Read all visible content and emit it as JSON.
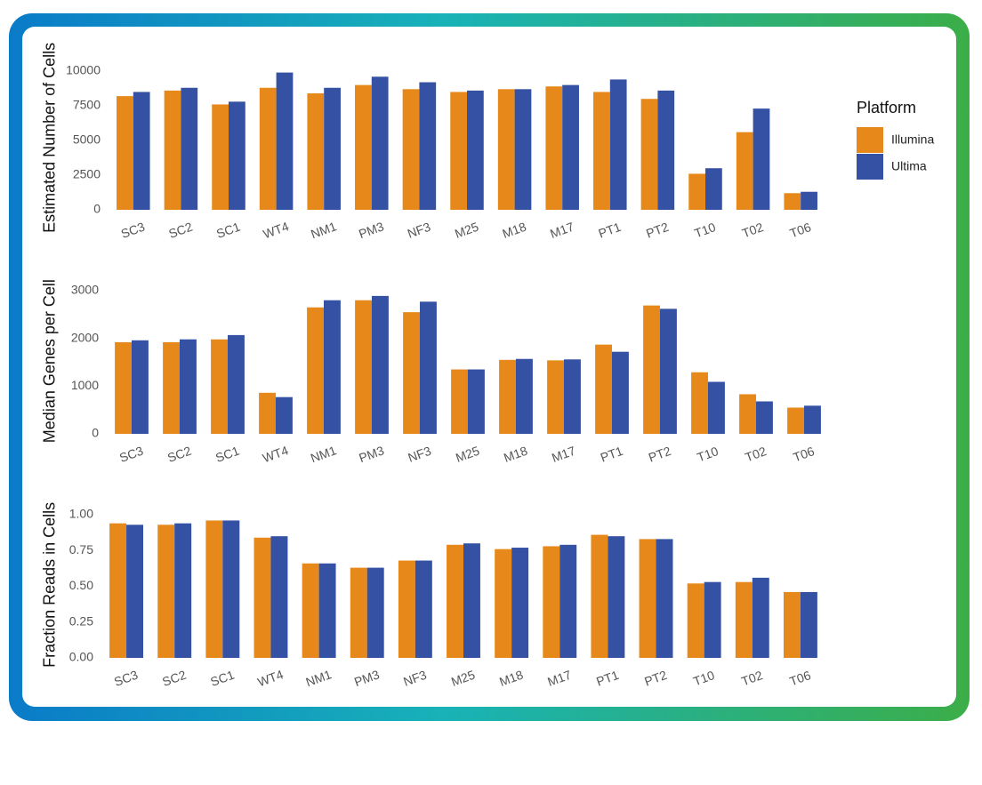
{
  "chart_data": [
    {
      "type": "bar",
      "y_label": "Estimated Number of Cells",
      "legend": {
        "title": "Platform",
        "position": "right"
      },
      "categories": [
        "SC3",
        "SC2",
        "SC1",
        "WT4",
        "NM1",
        "PM3",
        "NF3",
        "M25",
        "M18",
        "M17",
        "PT1",
        "PT2",
        "T10",
        "T02",
        "T06"
      ],
      "series": [
        {
          "name": "Illumina",
          "color": "#e6891a",
          "values": [
            8200,
            8600,
            7600,
            8800,
            8400,
            9000,
            8700,
            8500,
            8700,
            8900,
            8500,
            8000,
            2600,
            5600,
            1200
          ]
        },
        {
          "name": "Ultima",
          "color": "#3551a4",
          "values": [
            8500,
            8800,
            7800,
            9900,
            8800,
            9600,
            9200,
            8600,
            8700,
            9000,
            9400,
            8600,
            3000,
            7300,
            1300
          ]
        }
      ],
      "ylim": [
        0,
        10400
      ],
      "yticks": [
        0,
        2500,
        5000,
        7500,
        10000
      ]
    },
    {
      "type": "bar",
      "y_label": "Median Genes per Cell",
      "categories": [
        "SC3",
        "SC2",
        "SC1",
        "WT4",
        "NM1",
        "PM3",
        "NF3",
        "M25",
        "M18",
        "M17",
        "PT1",
        "PT2",
        "T10",
        "T02",
        "T06"
      ],
      "series": [
        {
          "color": "#e6891a",
          "values": [
            1920,
            1920,
            1980,
            860,
            2650,
            2800,
            2550,
            1350,
            1550,
            1540,
            1870,
            2690,
            1290,
            830,
            550
          ]
        },
        {
          "color": "#3551a4",
          "values": [
            1960,
            1980,
            2070,
            770,
            2800,
            2890,
            2770,
            1350,
            1570,
            1560,
            1720,
            2620,
            1090,
            680,
            590
          ]
        }
      ],
      "ylim": [
        0,
        3050
      ],
      "yticks": [
        0,
        1000,
        2000,
        3000
      ]
    },
    {
      "type": "bar",
      "y_label": "Fraction Reads in Cells",
      "categories": [
        "SC3",
        "SC2",
        "SC1",
        "WT4",
        "NM1",
        "PM3",
        "NF3",
        "M25",
        "M18",
        "M17",
        "PT1",
        "PT2",
        "T10",
        "T02",
        "T06"
      ],
      "series": [
        {
          "color": "#e6891a",
          "values": [
            0.94,
            0.93,
            0.96,
            0.84,
            0.66,
            0.63,
            0.68,
            0.79,
            0.76,
            0.78,
            0.86,
            0.83,
            0.52,
            0.53,
            0.46
          ]
        },
        {
          "color": "#3551a4",
          "values": [
            0.93,
            0.94,
            0.96,
            0.85,
            0.66,
            0.63,
            0.68,
            0.8,
            0.77,
            0.79,
            0.85,
            0.83,
            0.53,
            0.56,
            0.46
          ]
        }
      ],
      "ylim": [
        0,
        1.02
      ],
      "yticks": [
        {
          "value": 0,
          "label": "0.00"
        },
        0.25,
        {
          "value": 0.5,
          "label": "0.50"
        },
        0.75,
        {
          "value": 1,
          "label": "1.00"
        }
      ]
    }
  ]
}
